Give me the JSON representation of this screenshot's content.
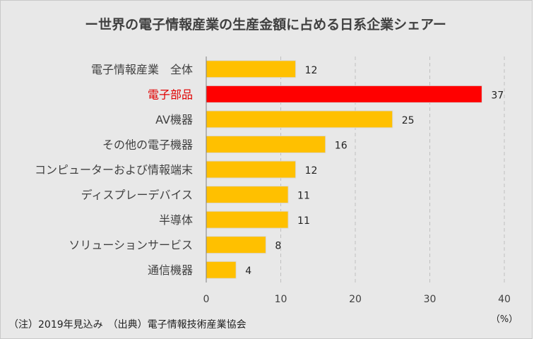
{
  "title": "ー世界の電子情報産業の生産金額に占める日系企業シェアー",
  "note": "（注）2019年見込み　（出典）電子情報技術産業協会",
  "chart_data": {
    "type": "bar",
    "orientation": "horizontal",
    "categories": [
      "電子情報産業　全体",
      "電子部品",
      "AV機器",
      "その他の電子機器",
      "コンピューターおよび情報端末",
      "ディスプレーデバイス",
      "半導体",
      "ソリューションサービス",
      "通信機器"
    ],
    "values": [
      12,
      37,
      25,
      16,
      12,
      11,
      11,
      8,
      4
    ],
    "highlight_index": 1,
    "xlim": [
      0,
      40
    ],
    "xticks": [
      0,
      10,
      20,
      30,
      40
    ],
    "xunit": "（%）",
    "grid": "vertical-dashed",
    "colors": {
      "bar": "#FFC000",
      "highlight": "#FF0000",
      "highlight_label": "#E00000",
      "label": "#404040",
      "grid": "#c0c0c0",
      "axis": "#7f7f7f"
    }
  }
}
